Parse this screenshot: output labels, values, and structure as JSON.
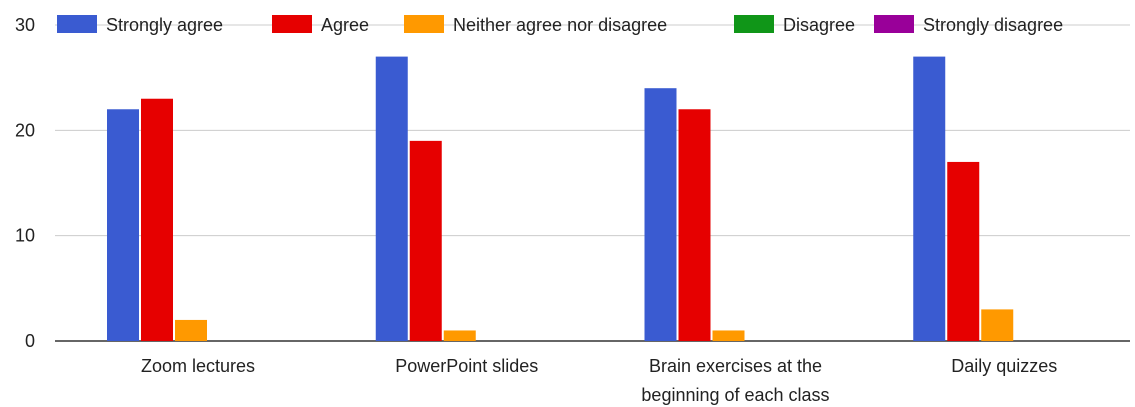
{
  "chart_data": {
    "type": "bar",
    "title": "",
    "xlabel": "",
    "ylabel": "",
    "ylim": [
      0,
      30
    ],
    "yticks": [
      0,
      10,
      20,
      30
    ],
    "grid": true,
    "legend_position": "top",
    "categories": [
      [
        "Zoom lectures"
      ],
      [
        "PowerPoint slides"
      ],
      [
        "Brain exercises at the",
        "beginning of each class"
      ],
      [
        "Daily quizzes"
      ]
    ],
    "series": [
      {
        "name": "Strongly agree",
        "color": "#3a5bd1",
        "values": [
          22,
          27,
          24,
          27
        ]
      },
      {
        "name": "Agree",
        "color": "#e60000",
        "values": [
          23,
          19,
          22,
          17
        ]
      },
      {
        "name": "Neither agree nor disagree",
        "color": "#ff9900",
        "values": [
          2,
          1,
          1,
          3
        ]
      },
      {
        "name": "Disagree",
        "color": "#109618",
        "values": [
          0,
          0,
          0,
          0
        ]
      },
      {
        "name": "Strongly disagree",
        "color": "#990099",
        "values": [
          0,
          0,
          0,
          0
        ]
      }
    ]
  }
}
